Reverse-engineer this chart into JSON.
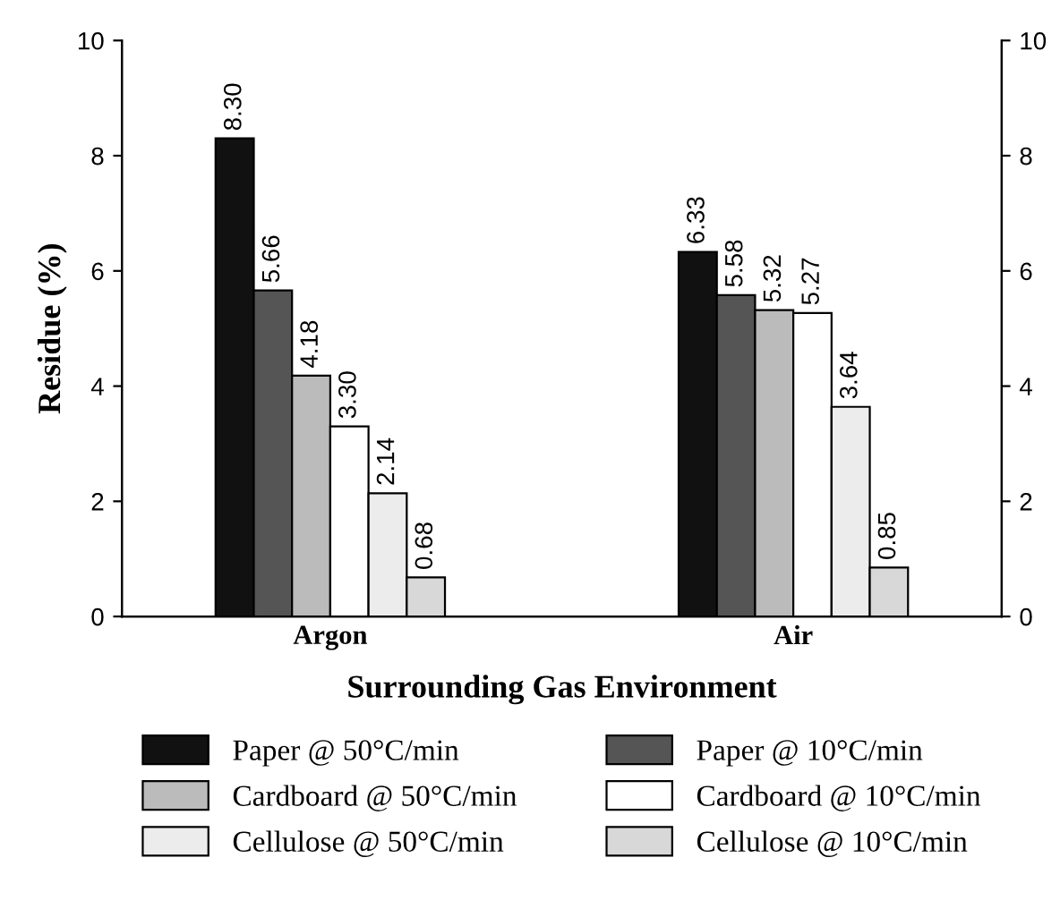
{
  "chart_data": {
    "type": "bar",
    "xlabel": "Surrounding Gas Environment",
    "ylabel": "Residue (%)",
    "categories": [
      "Argon",
      "Air"
    ],
    "series": [
      {
        "name": "Paper @ 50°C/min",
        "color": "#111111",
        "values": [
          8.3,
          6.33
        ]
      },
      {
        "name": "Paper @ 10°C/min",
        "color": "#555555",
        "values": [
          5.66,
          5.58
        ]
      },
      {
        "name": "Cardboard @ 50°C/min",
        "color": "#bbbbbb",
        "values": [
          4.18,
          5.32
        ]
      },
      {
        "name": "Cardboard @ 10°C/min",
        "color": "#ffffff",
        "values": [
          3.3,
          5.27
        ]
      },
      {
        "name": "Cellulose @ 50°C/min",
        "color": "#ececec",
        "values": [
          2.14,
          3.64
        ]
      },
      {
        "name": "Cellulose @ 10°C/min",
        "color": "#d8d8d8",
        "values": [
          0.68,
          0.85
        ]
      }
    ],
    "value_labels": [
      [
        "8.30",
        "6.33"
      ],
      [
        "5.66",
        "5.58"
      ],
      [
        "4.18",
        "5.32"
      ],
      [
        "3.30",
        "5.27"
      ],
      [
        "2.14",
        "3.64"
      ],
      [
        "0.68",
        "0.85"
      ]
    ],
    "ylim": [
      0,
      10
    ],
    "yticks": [
      0,
      2,
      4,
      6,
      8,
      10
    ],
    "y2lim": [
      0,
      10
    ],
    "y2ticks": [
      0,
      2,
      4,
      6,
      8,
      10
    ],
    "grid": false,
    "legend": "bottom"
  }
}
